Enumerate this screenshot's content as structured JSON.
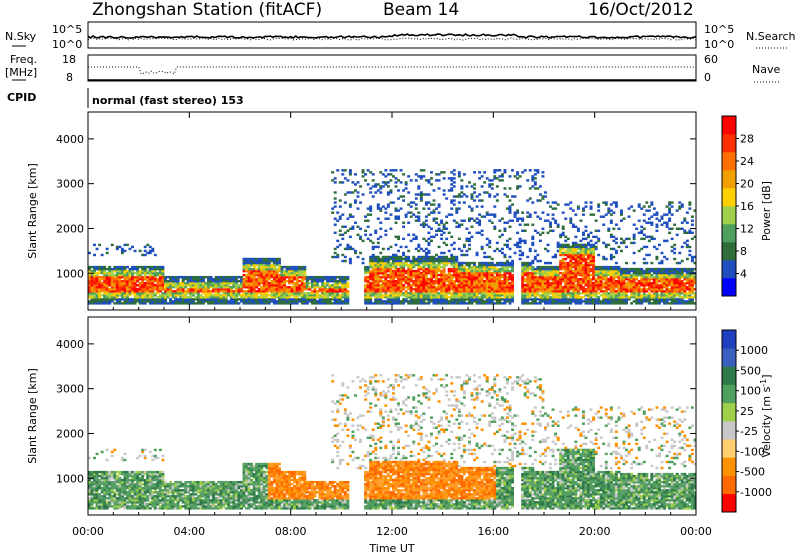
{
  "header": {
    "station": "Zhongshan Station (fitACF)",
    "beam": "Beam 14",
    "date": "16/Oct/2012"
  },
  "chart_data": [
    {
      "type": "line",
      "panel": "noise",
      "left_label": "N.Sky",
      "right_label": "N.Search",
      "left_ticks": [
        "10^5",
        "10^0"
      ],
      "right_ticks": [
        "10^5",
        "10^0"
      ],
      "series": [
        {
          "name": "N.Sky",
          "style": "solid",
          "level": 0.55
        },
        {
          "name": "N.Search",
          "style": "dotted",
          "level": 0.45
        }
      ]
    },
    {
      "type": "line",
      "panel": "frequency",
      "left_label_top": "Freq.",
      "left_label_bottom": "[MHz]",
      "right_label": "Nave",
      "left_ticks": [
        "18",
        "8"
      ],
      "right_ticks": [
        "60",
        "0"
      ],
      "ylim_freq": [
        8,
        18
      ],
      "ylim_nave": [
        0,
        60
      ],
      "series": [
        {
          "name": "Freq.",
          "style": "solid",
          "value": 8
        },
        {
          "name": "Nave",
          "style": "dotted",
          "value": 30
        }
      ]
    },
    {
      "type": "text",
      "panel": "cpid",
      "label": "CPID",
      "value": "normal (fast stereo) 153"
    },
    {
      "type": "heatmap",
      "panel": "power",
      "ylabel": "Slant Range [km]",
      "ylim": [
        180,
        4600
      ],
      "yticks": [
        "1000",
        "2000",
        "3000",
        "4000"
      ],
      "ytick_values": [
        1000,
        2000,
        3000,
        4000
      ],
      "xlim_hours": [
        0,
        24
      ],
      "colorbar": {
        "label": "Power [dB]",
        "range": [
          0,
          32
        ],
        "ticks": [
          "4",
          "8",
          "12",
          "16",
          "20",
          "24",
          "28"
        ],
        "colors": [
          "#0000ff",
          "#1f4fbf",
          "#2f6e3a",
          "#4f9f5f",
          "#9fd04a",
          "#ffd000",
          "#f0a000",
          "#ff7000",
          "#ff3000",
          "#ff0000"
        ]
      }
    },
    {
      "type": "heatmap",
      "panel": "velocity",
      "ylabel": "Slant Range [km]",
      "ylim": [
        180,
        4600
      ],
      "yticks": [
        "1000",
        "2000",
        "3000",
        "4000"
      ],
      "ytick_values": [
        1000,
        2000,
        3000,
        4000
      ],
      "xlim_hours": [
        0,
        24
      ],
      "colorbar": {
        "label": "Velocity [m s",
        "label_sup": "-1",
        "label_end": "]",
        "ticks": [
          "1000",
          "500",
          "100",
          "25",
          "-25",
          "-100",
          "-500",
          "-1000"
        ],
        "colors": [
          "#1f3fbf",
          "#3a5fbf",
          "#2f7a4a",
          "#4f9f5f",
          "#9fd04a",
          "#c8c8c8",
          "#ffd070",
          "#ff9000",
          "#ff6a00",
          "#ff0000"
        ]
      }
    }
  ],
  "x_axis": {
    "label": "Time UT",
    "ticks": [
      "00:00",
      "04:00",
      "08:00",
      "12:00",
      "16:00",
      "20:00",
      "00:00"
    ],
    "tick_hours": [
      0,
      4,
      8,
      12,
      16,
      20,
      24
    ]
  }
}
